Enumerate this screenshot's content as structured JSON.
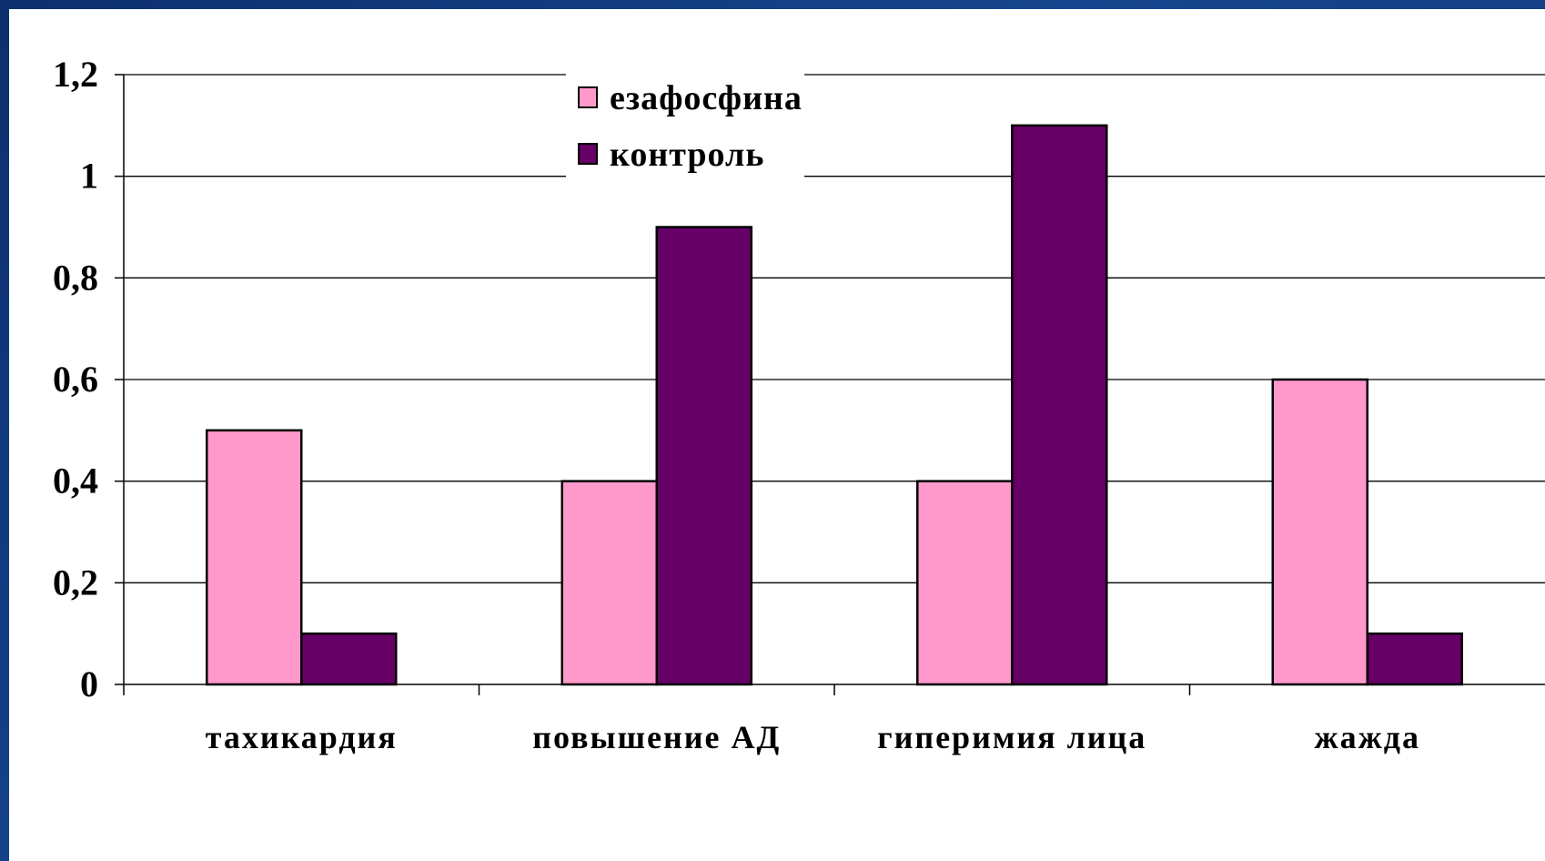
{
  "chart_data": {
    "type": "bar",
    "categories": [
      "тахикардия",
      "повышение АД",
      "гиперимия лица",
      "жажда"
    ],
    "series": [
      {
        "name": "езафосфина",
        "values": [
          0.5,
          0.4,
          0.4,
          0.6
        ],
        "color": "#ff99cc"
      },
      {
        "name": "контроль",
        "values": [
          0.1,
          0.9,
          1.1,
          0.1
        ],
        "color": "#660066"
      }
    ],
    "yticks": [
      "0",
      "0,2",
      "0,4",
      "0,6",
      "0,8",
      "1",
      "1,2"
    ],
    "ylim": [
      0,
      1.2
    ],
    "grid": true,
    "legend": "top-center",
    "title": "",
    "xlabel": "",
    "ylabel": ""
  }
}
